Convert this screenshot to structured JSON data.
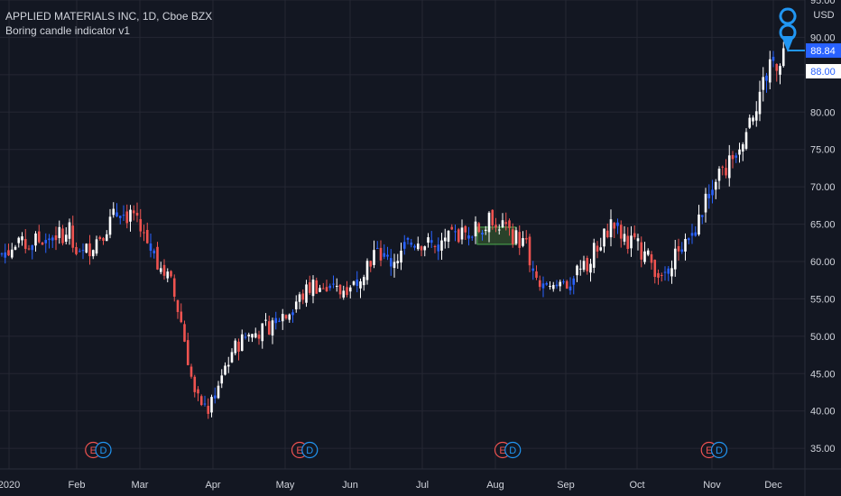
{
  "header": {
    "symbol_line": "APPLIED MATERIALS INC, 1D, Cboe BZX",
    "indicator": "Boring candle indicator v1"
  },
  "currency": "USD",
  "colors": {
    "background": "#131722",
    "grid": "#242733",
    "text": "#d1d4dc",
    "up": "#ffffff",
    "down": "#ef5350",
    "boring": "#2962ff",
    "zone_fill": "#2e4a2c",
    "zone_border": "#4caf50",
    "earnings": "#ef5350",
    "dividend": "#2196f3",
    "price_tag": "#2962ff"
  },
  "chart_data": {
    "type": "candlestick",
    "title": "APPLIED MATERIALS INC, 1D, Cboe BZX",
    "ylim": [
      32,
      95
    ],
    "y_ticks": [
      35,
      40,
      45,
      50,
      55,
      60,
      65,
      70,
      75,
      80,
      85,
      90,
      95
    ],
    "y_tick_labels": [
      "35.00",
      "40.00",
      "45.00",
      "50.00",
      "55.00",
      "60.00",
      "65.00",
      "70.00",
      "75.00",
      "80.00",
      "85.00",
      "90.00",
      "95.00"
    ],
    "x_labels": [
      "2020",
      "Feb",
      "Mar",
      "Apr",
      "May",
      "Jun",
      "Jul",
      "Aug",
      "Sep",
      "Oct",
      "Nov",
      "Dec"
    ],
    "last_price": 88.84,
    "last_price_label": "88.84",
    "secondary_price": 88.0,
    "secondary_price_label": "88.00",
    "close_path": [
      [
        0,
        61
      ],
      [
        5,
        62
      ],
      [
        12,
        63
      ],
      [
        20,
        64
      ],
      [
        22,
        60
      ],
      [
        28,
        63
      ],
      [
        35,
        67
      ],
      [
        40,
        65
      ],
      [
        45,
        61
      ],
      [
        50,
        57
      ],
      [
        53,
        52
      ],
      [
        57,
        42
      ],
      [
        61,
        40
      ],
      [
        65,
        45
      ],
      [
        68,
        48
      ],
      [
        72,
        50
      ],
      [
        78,
        51
      ],
      [
        83,
        53
      ],
      [
        88,
        55
      ],
      [
        92,
        57
      ],
      [
        97,
        56
      ],
      [
        100,
        56
      ],
      [
        105,
        58
      ],
      [
        110,
        61
      ],
      [
        115,
        60
      ],
      [
        122,
        63
      ],
      [
        128,
        62
      ],
      [
        133,
        63
      ],
      [
        138,
        64
      ],
      [
        142,
        64.5
      ],
      [
        145,
        66
      ],
      [
        150,
        64
      ],
      [
        155,
        62
      ],
      [
        158,
        57
      ],
      [
        162,
        56
      ],
      [
        167,
        57
      ],
      [
        172,
        59
      ],
      [
        176,
        62
      ],
      [
        180,
        65
      ],
      [
        185,
        63
      ],
      [
        190,
        61
      ],
      [
        195,
        58
      ],
      [
        200,
        62
      ],
      [
        205,
        64
      ],
      [
        210,
        71
      ],
      [
        215,
        73
      ],
      [
        220,
        78
      ],
      [
        226,
        85
      ],
      [
        231,
        88
      ]
    ],
    "boring_zone": {
      "x_from": 140.5,
      "x_to": 152,
      "y_from": 62.3,
      "y_to": 64.6
    },
    "events": [
      {
        "label": "E",
        "type": "earnings",
        "x": 27
      },
      {
        "label": "D",
        "type": "dividend",
        "x": 30
      },
      {
        "label": "E",
        "type": "earnings",
        "x": 88
      },
      {
        "label": "D",
        "type": "dividend",
        "x": 91
      },
      {
        "label": "E",
        "type": "earnings",
        "x": 148
      },
      {
        "label": "D",
        "type": "dividend",
        "x": 151
      },
      {
        "label": "E",
        "type": "earnings",
        "x": 209
      },
      {
        "label": "D",
        "type": "dividend",
        "x": 212
      }
    ]
  }
}
